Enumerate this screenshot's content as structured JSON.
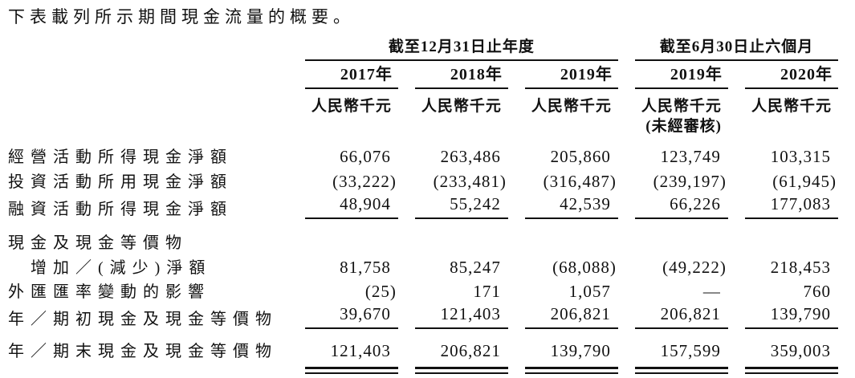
{
  "page": {
    "title": "下表載列所示期間現金流量的概要。"
  },
  "table": {
    "col_groups": [
      {
        "label": "截至12月31日止年度",
        "span": 3
      },
      {
        "label": "截至6月30日止六個月",
        "span": 2
      }
    ],
    "year_headers": [
      "2017年",
      "2018年",
      "2019年",
      "2019年",
      "2020年"
    ],
    "unit_label": "人民幣千元",
    "unaudited_note": "(未經審核)",
    "rows": [
      {
        "label": "經營活動所得現金淨額",
        "values": [
          "66,076",
          "263,486",
          "205,860",
          "123,749",
          "103,315"
        ]
      },
      {
        "label": "投資活動所用現金淨額",
        "values": [
          "(33,222)",
          "(233,481)",
          "(316,487)",
          "(239,197)",
          "(61,945)"
        ]
      },
      {
        "label": "融資活動所得現金淨額",
        "values": [
          "48,904",
          "55,242",
          "42,539",
          "66,226",
          "177,083"
        ]
      },
      {
        "label_line1": "現金及現金等價物",
        "label_line2": "增加／(減少)淨額",
        "values": [
          "81,758",
          "85,247",
          "(68,088)",
          "(49,222)",
          "218,453"
        ]
      },
      {
        "label": "外匯匯率變動的影響",
        "values": [
          "(25)",
          "171",
          "1,057",
          "—",
          "760"
        ]
      },
      {
        "label": "年／期初現金及現金等價物",
        "values": [
          "39,670",
          "121,403",
          "206,821",
          "206,821",
          "139,790"
        ]
      },
      {
        "label": "年／期末現金及現金等價物",
        "values": [
          "121,403",
          "206,821",
          "139,790",
          "157,599",
          "359,003"
        ]
      }
    ]
  }
}
